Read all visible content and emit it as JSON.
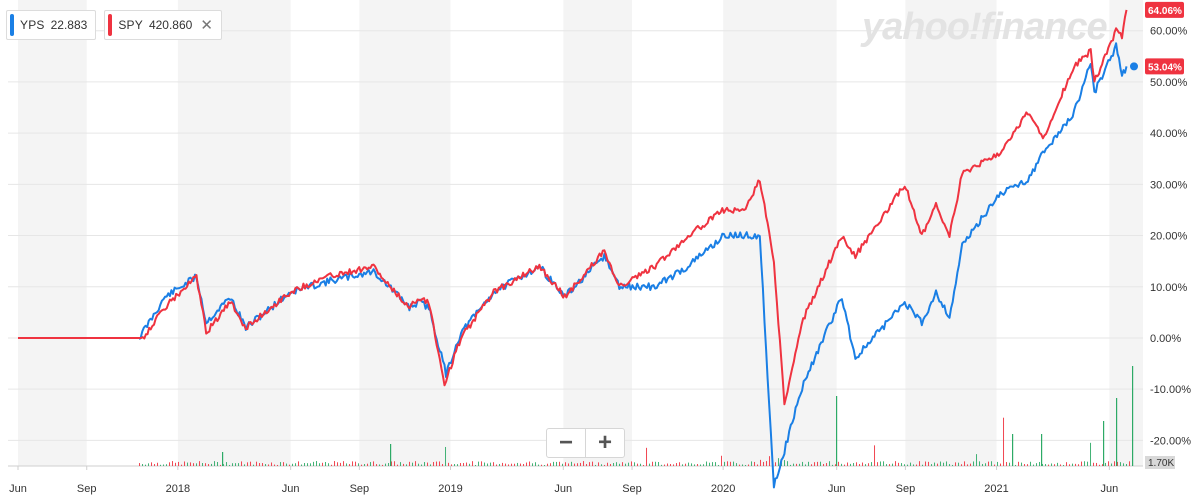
{
  "watermark": "yahoo!finance",
  "legend": [
    {
      "symbol": "YPS",
      "price": "22.883",
      "color": "#1a7fe5",
      "removable": false
    },
    {
      "symbol": "SPY",
      "price": "420.860",
      "color": "#ef3340",
      "removable": true,
      "close_icon": "close-icon"
    }
  ],
  "zoom": {
    "minus": "−",
    "plus": "+"
  },
  "colors": {
    "yps": "#1a7fe5",
    "spy": "#ef3340",
    "band": "#f4f4f4",
    "grid": "#e6e6e6",
    "vol_up": "#2daa66",
    "vol_down": "#ef3340"
  },
  "chart_data": {
    "type": "line",
    "y_axis_position": "right",
    "ylim": [
      -25,
      66
    ],
    "yticks": [
      -20,
      -10,
      0,
      10,
      20,
      30,
      40,
      50,
      60
    ],
    "ytick_labels": [
      "-20.00%",
      "-10.00%",
      "0.00%",
      "10.00%",
      "20.00%",
      "30.00%",
      "40.00%",
      "50.00%",
      "60.00%"
    ],
    "xlim": [
      "2017-06-01",
      "2021-06-30"
    ],
    "xtick_labels": [
      {
        "date": "2017-06-01",
        "label": "Jun"
      },
      {
        "date": "2017-09-01",
        "label": "Sep"
      },
      {
        "date": "2018-01-01",
        "label": "2018"
      },
      {
        "date": "2018-06-01",
        "label": "Jun"
      },
      {
        "date": "2018-09-01",
        "label": "Sep"
      },
      {
        "date": "2019-01-01",
        "label": "2019"
      },
      {
        "date": "2019-06-01",
        "label": "Jun"
      },
      {
        "date": "2019-09-01",
        "label": "Sep"
      },
      {
        "date": "2020-01-01",
        "label": "2020"
      },
      {
        "date": "2020-06-01",
        "label": "Jun"
      },
      {
        "date": "2020-09-01",
        "label": "Sep"
      },
      {
        "date": "2021-01-01",
        "label": "2021"
      },
      {
        "date": "2021-06-01",
        "label": "Jun"
      }
    ],
    "last_value_labels": [
      {
        "series": "SPY",
        "value": 64.06,
        "label": "64.06%"
      },
      {
        "series": "YPS",
        "value": 53.04,
        "label": "53.04%"
      }
    ],
    "volume_max_label": "1.70K",
    "series": [
      {
        "name": "SPY",
        "dates": [
          "2017-06-01",
          "2017-11-15",
          "2017-12-15",
          "2018-01-26",
          "2018-02-08",
          "2018-03-12",
          "2018-04-02",
          "2018-06-01",
          "2018-07-20",
          "2018-09-20",
          "2018-10-11",
          "2018-11-07",
          "2018-11-20",
          "2018-12-03",
          "2018-12-24",
          "2019-01-15",
          "2019-02-28",
          "2019-04-30",
          "2019-06-03",
          "2019-07-26",
          "2019-08-15",
          "2019-10-02",
          "2019-11-15",
          "2020-01-02",
          "2020-01-31",
          "2020-02-19",
          "2020-03-09",
          "2020-03-23",
          "2020-04-15",
          "2020-06-08",
          "2020-06-26",
          "2020-08-31",
          "2020-09-23",
          "2020-10-12",
          "2020-10-30",
          "2020-11-16",
          "2021-01-04",
          "2021-02-12",
          "2021-03-04",
          "2021-04-15",
          "2021-05-07",
          "2021-05-12",
          "2021-06-10",
          "2021-06-18",
          "2021-06-24"
        ],
        "values": [
          0,
          0,
          6,
          12,
          1,
          7,
          2,
          9,
          12,
          14,
          10,
          6,
          8,
          7,
          -9,
          0,
          9,
          14,
          8,
          17,
          10,
          14,
          20,
          25,
          25,
          31,
          15,
          -13,
          3,
          20,
          16,
          30,
          20,
          26,
          20,
          32,
          36,
          44,
          39,
          53,
          56,
          50,
          60,
          59,
          64.06
        ]
      },
      {
        "name": "YPS",
        "dates": [
          "2017-11-10",
          "2017-12-15",
          "2018-01-26",
          "2018-02-08",
          "2018-03-12",
          "2018-04-02",
          "2018-06-01",
          "2018-07-20",
          "2018-09-20",
          "2018-10-11",
          "2018-11-07",
          "2018-11-20",
          "2018-12-03",
          "2018-12-26",
          "2019-01-15",
          "2019-02-28",
          "2019-04-30",
          "2019-06-03",
          "2019-07-26",
          "2019-08-15",
          "2019-10-02",
          "2019-11-15",
          "2020-01-02",
          "2020-02-19",
          "2020-03-09",
          "2020-03-23",
          "2020-04-07",
          "2020-04-20",
          "2020-06-08",
          "2020-06-26",
          "2020-08-31",
          "2020-09-23",
          "2020-10-12",
          "2020-10-30",
          "2020-11-16",
          "2021-01-04",
          "2021-02-12",
          "2021-03-04",
          "2021-04-15",
          "2021-05-07",
          "2021-05-12",
          "2021-06-10",
          "2021-06-18",
          "2021-06-24"
        ],
        "values": [
          0,
          8,
          12,
          3,
          8,
          2,
          9,
          11,
          13,
          10,
          6,
          7,
          6,
          -7,
          1,
          9,
          14,
          8,
          16,
          10,
          10,
          14,
          20,
          20,
          -29,
          -22,
          -14,
          -8,
          8,
          -4,
          7,
          3,
          9,
          4,
          18,
          28,
          31,
          36,
          44,
          54,
          48,
          57,
          51,
          53.04
        ]
      }
    ]
  }
}
